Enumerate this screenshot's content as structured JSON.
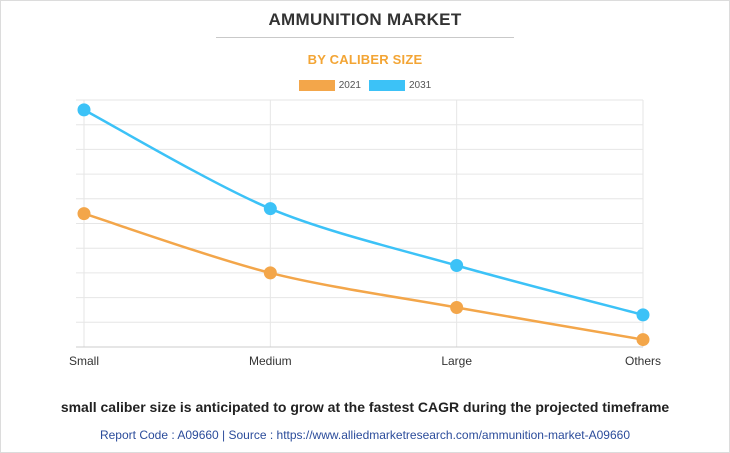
{
  "header": {
    "title": "AMMUNITION MARKET",
    "subtitle": "BY CALIBER SIZE"
  },
  "colors": {
    "series_2021": "#f3a64a",
    "series_2031": "#3cc2f7",
    "grid": "#e6e6e6"
  },
  "chart_data": {
    "type": "line",
    "categories": [
      "Small",
      "Medium",
      "Large",
      "Others"
    ],
    "series": [
      {
        "name": "2021",
        "color": "#f3a64a",
        "values": [
          5.4,
          3.0,
          1.6,
          0.3
        ]
      },
      {
        "name": "2031",
        "color": "#3cc2f7",
        "values": [
          9.6,
          5.6,
          3.3,
          1.3
        ]
      }
    ],
    "ylim": [
      0,
      10
    ],
    "grid": true,
    "legend": "top-center",
    "xlabel": "",
    "ylabel": ""
  },
  "footer": {
    "headline": "small caliber size is anticipated to grow at the fastest CAGR during the projected timeframe",
    "report_code": "Report Code : A09660  |  Source : https://www.alliedmarketresearch.com/ammunition-market-A09660"
  }
}
